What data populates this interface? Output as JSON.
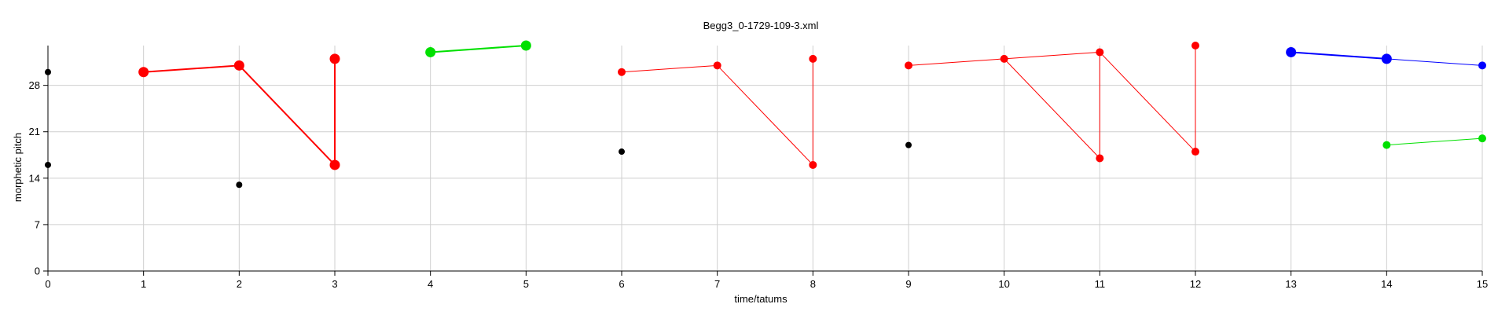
{
  "chart_data": {
    "type": "line",
    "title": "Begg3_0-1729-109-3.xml",
    "xlabel": "time/tatums",
    "ylabel": "morphetic pitch",
    "xlim": [
      0,
      15
    ],
    "ylim": [
      0,
      34
    ],
    "x_ticks": [
      0,
      1,
      2,
      3,
      4,
      5,
      6,
      7,
      8,
      9,
      10,
      11,
      12,
      13,
      14,
      15
    ],
    "y_ticks": [
      0,
      7,
      14,
      21,
      28
    ],
    "grid": true,
    "colors": {
      "red": "#ff0000",
      "green": "#00e000",
      "blue": "#0000ff",
      "black": "#000000"
    },
    "segments": [
      {
        "color": "red",
        "weight": "thick",
        "points": [
          [
            1,
            30
          ],
          [
            2,
            31
          ]
        ]
      },
      {
        "color": "red",
        "weight": "thick",
        "points": [
          [
            2,
            31
          ],
          [
            3,
            16
          ]
        ]
      },
      {
        "color": "red",
        "weight": "thick",
        "points": [
          [
            3,
            32
          ],
          [
            3,
            16
          ]
        ]
      },
      {
        "color": "green",
        "weight": "thick",
        "points": [
          [
            4,
            33
          ],
          [
            5,
            34
          ]
        ]
      },
      {
        "color": "red",
        "weight": "thin",
        "points": [
          [
            6,
            30
          ],
          [
            7,
            31
          ]
        ]
      },
      {
        "color": "red",
        "weight": "thin",
        "points": [
          [
            7,
            31
          ],
          [
            8,
            16
          ]
        ]
      },
      {
        "color": "red",
        "weight": "thin",
        "points": [
          [
            8,
            32
          ],
          [
            8,
            16
          ]
        ]
      },
      {
        "color": "red",
        "weight": "thin",
        "points": [
          [
            9,
            31
          ],
          [
            10,
            32
          ],
          [
            11,
            33
          ]
        ]
      },
      {
        "color": "red",
        "weight": "thin",
        "points": [
          [
            10,
            32
          ],
          [
            11,
            17
          ]
        ]
      },
      {
        "color": "red",
        "weight": "thin",
        "points": [
          [
            11,
            33
          ],
          [
            11,
            17
          ]
        ]
      },
      {
        "color": "red",
        "weight": "thin",
        "points": [
          [
            11,
            33
          ],
          [
            12,
            18
          ]
        ]
      },
      {
        "color": "red",
        "weight": "thin",
        "points": [
          [
            12,
            34
          ],
          [
            12,
            18
          ]
        ]
      },
      {
        "color": "blue",
        "weight": "thick",
        "points": [
          [
            13,
            33
          ],
          [
            14,
            32
          ]
        ]
      },
      {
        "color": "blue",
        "weight": "thin",
        "points": [
          [
            14,
            32
          ],
          [
            15,
            31
          ]
        ]
      },
      {
        "color": "green",
        "weight": "thin",
        "points": [
          [
            14,
            19
          ],
          [
            15,
            20
          ]
        ]
      }
    ],
    "points": [
      {
        "x": 0,
        "y": 30,
        "color": "black",
        "size": "small"
      },
      {
        "x": 0,
        "y": 16,
        "color": "black",
        "size": "small"
      },
      {
        "x": 1,
        "y": 30,
        "color": "red",
        "size": "large"
      },
      {
        "x": 2,
        "y": 31,
        "color": "red",
        "size": "large"
      },
      {
        "x": 2,
        "y": 13,
        "color": "black",
        "size": "small"
      },
      {
        "x": 3,
        "y": 32,
        "color": "red",
        "size": "large"
      },
      {
        "x": 3,
        "y": 16,
        "color": "red",
        "size": "large"
      },
      {
        "x": 4,
        "y": 33,
        "color": "green",
        "size": "large"
      },
      {
        "x": 5,
        "y": 34,
        "color": "green",
        "size": "large"
      },
      {
        "x": 6,
        "y": 30,
        "color": "red",
        "size": "medium"
      },
      {
        "x": 6,
        "y": 18,
        "color": "black",
        "size": "small"
      },
      {
        "x": 7,
        "y": 31,
        "color": "red",
        "size": "medium"
      },
      {
        "x": 8,
        "y": 32,
        "color": "red",
        "size": "medium"
      },
      {
        "x": 8,
        "y": 16,
        "color": "red",
        "size": "medium"
      },
      {
        "x": 9,
        "y": 31,
        "color": "red",
        "size": "medium"
      },
      {
        "x": 9,
        "y": 19,
        "color": "black",
        "size": "small"
      },
      {
        "x": 10,
        "y": 32,
        "color": "red",
        "size": "medium"
      },
      {
        "x": 11,
        "y": 33,
        "color": "red",
        "size": "medium"
      },
      {
        "x": 11,
        "y": 17,
        "color": "red",
        "size": "medium"
      },
      {
        "x": 12,
        "y": 34,
        "color": "red",
        "size": "medium"
      },
      {
        "x": 12,
        "y": 18,
        "color": "red",
        "size": "medium"
      },
      {
        "x": 13,
        "y": 33,
        "color": "blue",
        "size": "large"
      },
      {
        "x": 14,
        "y": 32,
        "color": "blue",
        "size": "large"
      },
      {
        "x": 15,
        "y": 31,
        "color": "blue",
        "size": "medium"
      },
      {
        "x": 14,
        "y": 19,
        "color": "green",
        "size": "medium"
      },
      {
        "x": 15,
        "y": 20,
        "color": "green",
        "size": "medium"
      }
    ]
  }
}
